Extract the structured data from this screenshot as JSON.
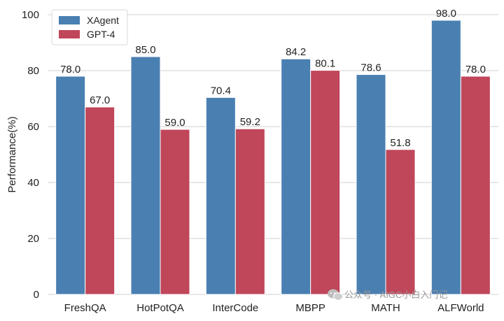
{
  "chart_data": {
    "type": "bar",
    "title": "",
    "xlabel": "",
    "ylabel": "Performance(%)",
    "ylim": [
      0,
      100
    ],
    "yticks": [
      "0",
      "20",
      "40",
      "60",
      "80",
      "100"
    ],
    "grid": "horizontal",
    "legend_position": "top-left",
    "categories": [
      "FreshQA",
      "HotPotQA",
      "InterCode",
      "MBPP",
      "MATH",
      "ALFWorld"
    ],
    "series": [
      {
        "name": "XAgent",
        "color": "#4a7fb1",
        "values": [
          78.0,
          85.0,
          70.4,
          84.2,
          78.6,
          98.0
        ],
        "labels": [
          "78.0",
          "85.0",
          "70.4",
          "84.2",
          "78.6",
          "98.0"
        ]
      },
      {
        "name": "GPT-4",
        "color": "#c0465a",
        "values": [
          67.0,
          59.0,
          59.2,
          80.1,
          51.8,
          78.0
        ],
        "labels": [
          "67.0",
          "59.0",
          "59.2",
          "80.1",
          "51.8",
          "78.0"
        ]
      }
    ]
  },
  "watermark": {
    "icon": "wechat-icon",
    "text": "公众号 · AIGC小白入门记"
  }
}
